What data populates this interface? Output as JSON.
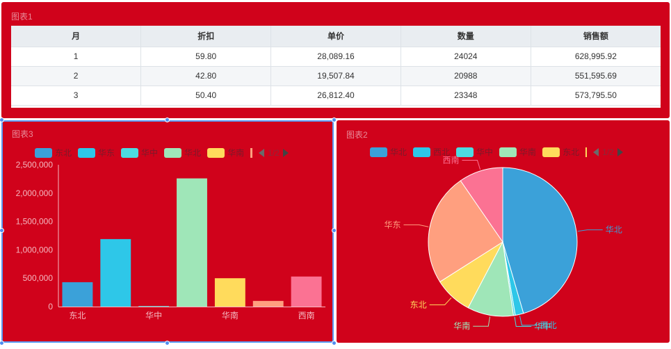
{
  "panel1": {
    "title": "图表1",
    "headers": [
      "月",
      "折扣",
      "单价",
      "数量",
      "销售额"
    ],
    "rows": [
      [
        "1",
        "59.80",
        "28,089.16",
        "24024",
        "628,995.92"
      ],
      [
        "2",
        "42.80",
        "19,507.84",
        "20988",
        "551,595.69"
      ],
      [
        "3",
        "50.40",
        "26,812.40",
        "23348",
        "573,795.50"
      ]
    ]
  },
  "panel3": {
    "title": "图表3",
    "legend": [
      "东北",
      "华东",
      "华中",
      "华北",
      "华南"
    ],
    "pager": "1/2"
  },
  "panel2": {
    "title": "图表2",
    "legend": [
      "华北",
      "西北",
      "华中",
      "华南",
      "东北"
    ],
    "pager": "1/2"
  },
  "colors": {
    "panel_bg": "#d0021b",
    "bar": [
      "#3ba1d9",
      "#2ec7e8",
      "#4ddbe0",
      "#9fe6b8",
      "#ffdb5c",
      "#ff9f7f",
      "#fb7293"
    ],
    "pie": [
      "#3ba1d9",
      "#2ec7e8",
      "#4ddbe0",
      "#9fe6b8",
      "#ffdb5c",
      "#ff9f7f",
      "#fb7293"
    ]
  },
  "chart_data": [
    {
      "type": "bar",
      "categories": [
        "东北",
        "华东",
        "华中",
        "华北",
        "华南",
        "西北",
        "西南"
      ],
      "tick_labels": [
        "东北",
        "华中",
        "华南",
        "西南"
      ],
      "values": [
        430000,
        1190000,
        10000,
        2260000,
        500000,
        100000,
        530000
      ],
      "ylim": [
        0,
        2500000
      ],
      "yticks": [
        "0",
        "500,000",
        "1,000,000",
        "1,500,000",
        "2,000,000",
        "2,500,000"
      ]
    },
    {
      "type": "pie",
      "slices": [
        {
          "label": "华北",
          "value": 45.5
        },
        {
          "label": "西北",
          "value": 1.8
        },
        {
          "label": "华中",
          "value": 0.4
        },
        {
          "label": "华南",
          "value": 10.0
        },
        {
          "label": "东北",
          "value": 8.3
        },
        {
          "label": "华东",
          "value": 24.4
        },
        {
          "label": "西南",
          "value": 9.6
        }
      ]
    }
  ]
}
